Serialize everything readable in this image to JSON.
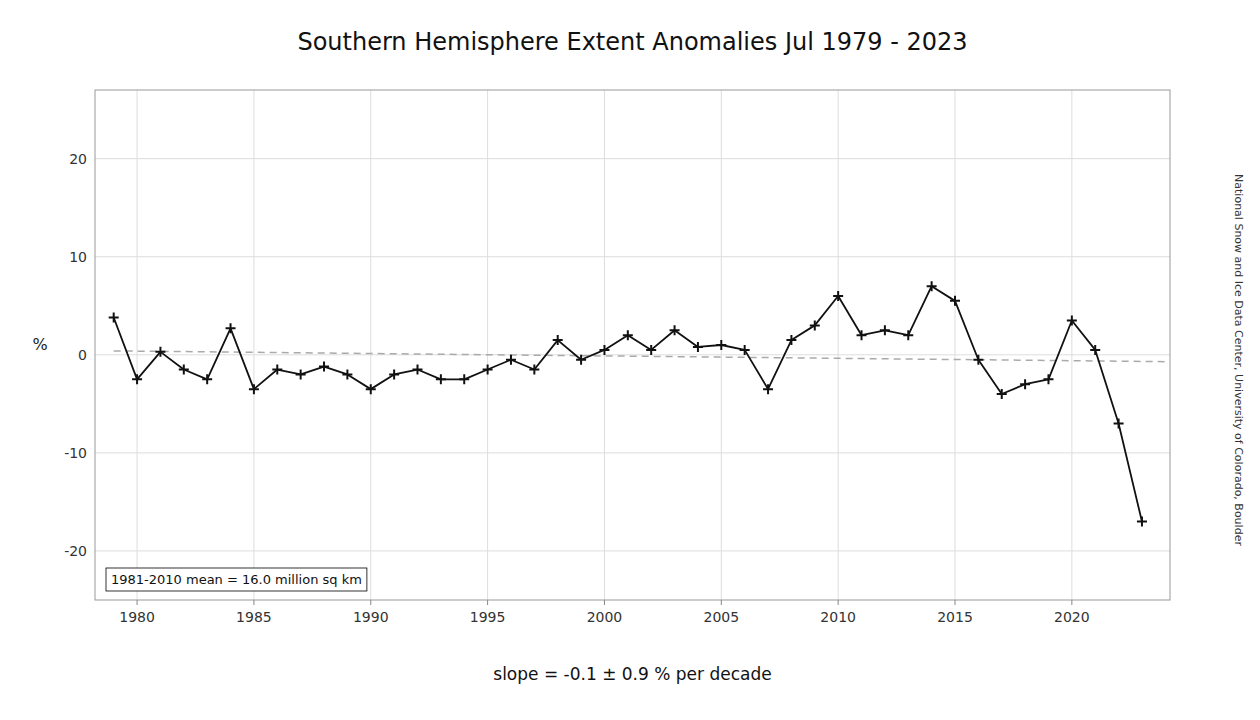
{
  "chart_data": {
    "type": "line",
    "title": "Southern Hemisphere Extent Anomalies Jul 1979 - 2023",
    "y_label": "%",
    "annotations": [
      "1981-2010 mean = 16.0 million sq km",
      "slope = -0.1 ± 0.9 % per decade",
      "National Snow and Ice Data Center, University of Colorado, Boulder"
    ],
    "x": [
      1979,
      1980,
      1981,
      1982,
      1983,
      1984,
      1985,
      1986,
      1987,
      1988,
      1989,
      1990,
      1991,
      1992,
      1993,
      1994,
      1995,
      1996,
      1997,
      1998,
      1999,
      2000,
      2001,
      2002,
      2003,
      2004,
      2005,
      2006,
      2007,
      2008,
      2009,
      2010,
      2011,
      2012,
      2013,
      2014,
      2015,
      2016,
      2017,
      2018,
      2019,
      2020,
      2021,
      2022,
      2023
    ],
    "series": [
      {
        "color": "#111111",
        "marker": "plus",
        "line_style": "solid",
        "values": [
          3.8,
          -2.5,
          0.3,
          -1.5,
          -2.5,
          2.7,
          -3.5,
          -1.5,
          -2.0,
          -1.2,
          -2.0,
          -3.5,
          -2.0,
          -1.5,
          -2.5,
          -2.5,
          -1.5,
          -0.5,
          -1.5,
          1.5,
          -0.5,
          0.5,
          2.0,
          0.5,
          2.5,
          0.8,
          1.0,
          0.5,
          -3.5,
          1.5,
          3.0,
          6.0,
          2.0,
          2.5,
          2.0,
          7.0,
          5.5,
          -0.5,
          -4.0,
          -3.0,
          -2.5,
          3.5,
          0.5,
          -7.0,
          -17.0
        ]
      },
      {
        "color": "#aaaaaa",
        "line_style": "dashed",
        "x": [
          1979,
          2024
        ],
        "values": [
          0.4,
          -0.7
        ]
      }
    ],
    "xlim": [
      1978.2,
      2024.2
    ],
    "ylim": [
      -25,
      27
    ],
    "xticks": [
      1980,
      1985,
      1990,
      1995,
      2000,
      2005,
      2010,
      2015,
      2020
    ],
    "yticks": [
      -20,
      -10,
      0,
      10,
      20
    ],
    "grid": true
  }
}
